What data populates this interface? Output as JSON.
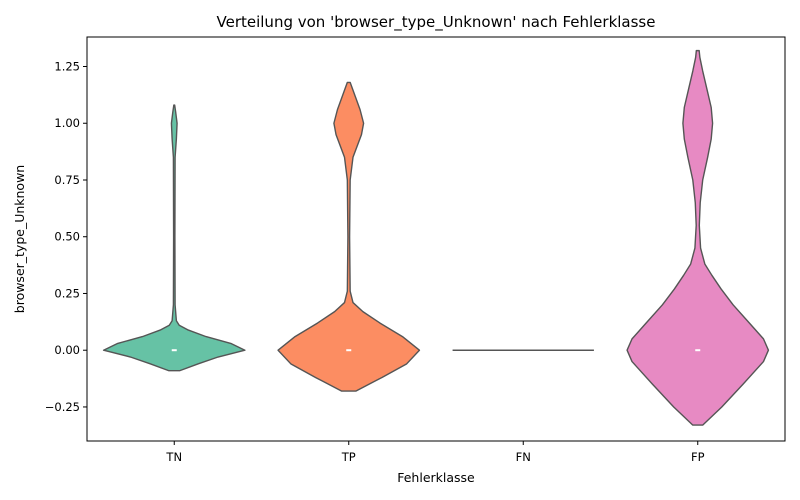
{
  "chart_data": {
    "type": "violin",
    "title": "Verteilung von 'browser_type_Unknown' nach Fehlerklasse",
    "xlabel": "Fehlerklasse",
    "ylabel": "browser_type_Unknown",
    "categories": [
      "TN",
      "TP",
      "FN",
      "FP"
    ],
    "ylim": [
      -0.4,
      1.38
    ],
    "yticks": [
      -0.25,
      0.0,
      0.25,
      0.5,
      0.75,
      1.0,
      1.25
    ],
    "ytick_labels": [
      "−0.25",
      "0.00",
      "0.25",
      "0.50",
      "0.75",
      "1.00",
      "1.25"
    ],
    "grid": false,
    "colors": [
      "#66c2a5",
      "#fc8d62",
      "#8da0cb",
      "#e78ac3"
    ],
    "series": [
      {
        "category": "TN",
        "median": 0.0,
        "range": [
          -0.09,
          1.08
        ],
        "profile": [
          [
            -0.09,
            0.08
          ],
          [
            -0.06,
            0.34
          ],
          [
            -0.03,
            0.62
          ],
          [
            0.0,
            1.0
          ],
          [
            0.03,
            0.8
          ],
          [
            0.06,
            0.45
          ],
          [
            0.09,
            0.19
          ],
          [
            0.11,
            0.07
          ],
          [
            0.13,
            0.03
          ],
          [
            0.2,
            0.012
          ],
          [
            0.5,
            0.009
          ],
          [
            0.85,
            0.012
          ],
          [
            0.93,
            0.03
          ],
          [
            1.0,
            0.04
          ],
          [
            1.05,
            0.02
          ],
          [
            1.08,
            0.006
          ]
        ]
      },
      {
        "category": "TP",
        "median": 0.0,
        "range": [
          -0.18,
          1.18
        ],
        "profile": [
          [
            -0.18,
            0.1
          ],
          [
            -0.12,
            0.47
          ],
          [
            -0.06,
            0.82
          ],
          [
            0.0,
            1.0
          ],
          [
            0.06,
            0.76
          ],
          [
            0.12,
            0.44
          ],
          [
            0.17,
            0.2
          ],
          [
            0.21,
            0.06
          ],
          [
            0.26,
            0.02
          ],
          [
            0.5,
            0.012
          ],
          [
            0.75,
            0.02
          ],
          [
            0.85,
            0.06
          ],
          [
            0.95,
            0.18
          ],
          [
            1.0,
            0.21
          ],
          [
            1.06,
            0.16
          ],
          [
            1.12,
            0.09
          ],
          [
            1.18,
            0.02
          ]
        ]
      },
      {
        "category": "FN",
        "median": 0.0,
        "range": [
          0.0,
          0.0
        ],
        "profile": []
      },
      {
        "category": "FP",
        "median": 0.0,
        "range": [
          -0.33,
          1.32
        ],
        "profile": [
          [
            -0.33,
            0.07
          ],
          [
            -0.25,
            0.34
          ],
          [
            -0.15,
            0.64
          ],
          [
            -0.05,
            0.93
          ],
          [
            0.0,
            1.0
          ],
          [
            0.05,
            0.93
          ],
          [
            0.12,
            0.73
          ],
          [
            0.2,
            0.5
          ],
          [
            0.27,
            0.33
          ],
          [
            0.33,
            0.2
          ],
          [
            0.38,
            0.1
          ],
          [
            0.45,
            0.04
          ],
          [
            0.55,
            0.022
          ],
          [
            0.65,
            0.035
          ],
          [
            0.75,
            0.07
          ],
          [
            0.85,
            0.14
          ],
          [
            0.93,
            0.19
          ],
          [
            1.0,
            0.21
          ],
          [
            1.07,
            0.19
          ],
          [
            1.15,
            0.13
          ],
          [
            1.23,
            0.07
          ],
          [
            1.29,
            0.03
          ],
          [
            1.32,
            0.02
          ]
        ]
      }
    ]
  }
}
